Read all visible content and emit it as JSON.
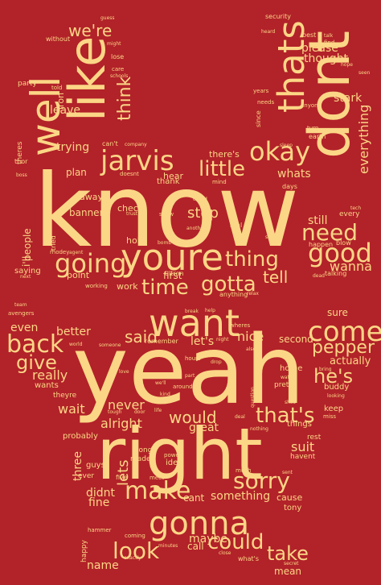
{
  "background_color": "#b22229",
  "word_color": "#fbd686",
  "words": [
    {
      "text": "know",
      "vertical": false
    },
    {
      "text": "yeah",
      "vertical": false
    },
    {
      "text": "right",
      "vertical": false
    },
    {
      "text": "dont",
      "vertical": true
    },
    {
      "text": "youre",
      "vertical": false
    },
    {
      "text": "like",
      "vertical": true
    },
    {
      "text": "want",
      "vertical": false
    },
    {
      "text": "thats",
      "vertical": true
    },
    {
      "text": "well",
      "vertical": true
    },
    {
      "text": "gonna",
      "vertical": false
    },
    {
      "text": "come",
      "vertical": false
    },
    {
      "text": "jarvis",
      "vertical": false
    },
    {
      "text": "okay",
      "vertical": false
    },
    {
      "text": "good",
      "vertical": false
    },
    {
      "text": "going",
      "vertical": false
    },
    {
      "text": "little",
      "vertical": false
    },
    {
      "text": "need",
      "vertical": false
    },
    {
      "text": "time",
      "vertical": false
    },
    {
      "text": "thing",
      "vertical": false
    },
    {
      "text": "gotta",
      "vertical": false
    },
    {
      "text": "back",
      "vertical": false
    },
    {
      "text": "sorry",
      "vertical": false
    },
    {
      "text": "make",
      "vertical": false
    },
    {
      "text": "take",
      "vertical": false
    },
    {
      "text": "look",
      "vertical": false
    },
    {
      "text": "could",
      "vertical": false
    },
    {
      "text": "that's",
      "vertical": false
    },
    {
      "text": "he's",
      "vertical": false
    },
    {
      "text": "pepper",
      "vertical": false
    },
    {
      "text": "would",
      "vertical": false
    },
    {
      "text": "said",
      "vertical": false
    },
    {
      "text": "give",
      "vertical": false
    },
    {
      "text": "think",
      "vertical": true
    },
    {
      "text": "tell",
      "vertical": false
    },
    {
      "text": "stop",
      "vertical": false
    },
    {
      "text": "everything",
      "vertical": true
    },
    {
      "text": "stark",
      "vertical": false
    },
    {
      "text": "we're",
      "vertical": false
    },
    {
      "text": "please",
      "vertical": false
    },
    {
      "text": "thought",
      "vertical": false
    },
    {
      "text": "trying",
      "vertical": false
    },
    {
      "text": "leave",
      "vertical": false
    },
    {
      "text": "whats",
      "vertical": false
    },
    {
      "text": "there's",
      "vertical": false
    },
    {
      "text": "wanna",
      "vertical": false
    },
    {
      "text": "still",
      "vertical": false
    },
    {
      "text": "first",
      "vertical": false
    },
    {
      "text": "nice",
      "vertical": false
    },
    {
      "text": "let's",
      "vertical": false
    },
    {
      "text": "better",
      "vertical": false
    },
    {
      "text": "even",
      "vertical": false
    },
    {
      "text": "really",
      "vertical": false
    },
    {
      "text": "wait",
      "vertical": false
    },
    {
      "text": "never",
      "vertical": false
    },
    {
      "text": "alright",
      "vertical": false
    },
    {
      "text": "great",
      "vertical": false
    },
    {
      "text": "suit",
      "vertical": false
    },
    {
      "text": "actually",
      "vertical": false
    },
    {
      "text": "lets",
      "vertical": true
    },
    {
      "text": "three",
      "vertical": true
    },
    {
      "text": "didnt",
      "vertical": false
    },
    {
      "text": "fine",
      "vertical": false
    },
    {
      "text": "cant",
      "vertical": false
    },
    {
      "text": "something",
      "vertical": false
    },
    {
      "text": "maybe",
      "vertical": false
    },
    {
      "text": "call",
      "vertical": false
    },
    {
      "text": "name",
      "vertical": false
    },
    {
      "text": "mean",
      "vertical": false
    },
    {
      "text": "cause",
      "vertical": false
    },
    {
      "text": "tony",
      "vertical": false
    },
    {
      "text": "sure",
      "vertical": false
    },
    {
      "text": "second",
      "vertical": false
    },
    {
      "text": "plan",
      "vertical": false
    },
    {
      "text": "banner",
      "vertical": false
    },
    {
      "text": "away",
      "vertical": false
    },
    {
      "text": "point",
      "vertical": false
    },
    {
      "text": "work",
      "vertical": false
    },
    {
      "text": "hold",
      "vertical": false
    },
    {
      "text": "check",
      "vertical": false
    },
    {
      "text": "hear",
      "vertical": false
    },
    {
      "text": "thank",
      "vertical": false
    },
    {
      "text": "idea",
      "vertical": false
    },
    {
      "text": "made",
      "vertical": false
    },
    {
      "text": "long",
      "vertical": false
    },
    {
      "text": "five",
      "vertical": false
    },
    {
      "text": "guys",
      "vertical": false
    },
    {
      "text": "ever",
      "vertical": false
    },
    {
      "text": "probably",
      "vertical": false
    },
    {
      "text": "theyre",
      "vertical": false
    },
    {
      "text": "wants",
      "vertical": false
    },
    {
      "text": "keep",
      "vertical": false
    },
    {
      "text": "pretty",
      "vertical": false
    },
    {
      "text": "home",
      "vertical": false
    },
    {
      "text": "things",
      "vertical": false
    },
    {
      "text": "rest",
      "vertical": false
    },
    {
      "text": "havent",
      "vertical": false
    },
    {
      "text": "buddy",
      "vertical": false
    },
    {
      "text": "i'll",
      "vertical": true
    },
    {
      "text": "people",
      "vertical": true
    },
    {
      "text": "saying",
      "vertical": false
    },
    {
      "text": "party",
      "vertical": false
    },
    {
      "text": "iron",
      "vertical": true
    },
    {
      "text": "theres",
      "vertical": true
    },
    {
      "text": "thor",
      "vertical": false
    },
    {
      "text": "ultron",
      "vertical": false
    },
    {
      "text": "anything",
      "vertical": false
    },
    {
      "text": "real",
      "vertical": false
    },
    {
      "text": "every",
      "vertical": false
    },
    {
      "text": "talking",
      "vertical": false
    },
    {
      "text": "happen",
      "vertical": false
    },
    {
      "text": "blow",
      "vertical": false
    },
    {
      "text": "days",
      "vertical": false
    },
    {
      "text": "mind",
      "vertical": false
    },
    {
      "text": "turn",
      "vertical": false
    },
    {
      "text": "earth",
      "vertical": false
    },
    {
      "text": "since",
      "vertical": true
    },
    {
      "text": "needs",
      "vertical": false
    },
    {
      "text": "anyone",
      "vertical": false
    },
    {
      "text": "years",
      "vertical": false
    },
    {
      "text": "told",
      "vertical": false
    },
    {
      "text": "without",
      "vertical": false
    },
    {
      "text": "might",
      "vertical": false
    },
    {
      "text": "lose",
      "vertical": false
    },
    {
      "text": "care",
      "vertical": false
    },
    {
      "text": "schools",
      "vertical": false
    },
    {
      "text": "guess",
      "vertical": false
    },
    {
      "text": "security",
      "vertical": false
    },
    {
      "text": "heard",
      "vertical": false
    },
    {
      "text": "best",
      "vertical": false
    },
    {
      "text": "talk",
      "vertical": false
    },
    {
      "text": "find",
      "vertical": false
    },
    {
      "text": "hope",
      "vertical": false
    },
    {
      "text": "seen",
      "vertical": false
    },
    {
      "text": "can't",
      "vertical": false
    },
    {
      "text": "company",
      "vertical": false
    },
    {
      "text": "doesnt",
      "vertical": false
    },
    {
      "text": "trust",
      "vertical": false
    },
    {
      "text": "show",
      "vertical": false
    },
    {
      "text": "called",
      "vertical": false
    },
    {
      "text": "another",
      "vertical": false
    },
    {
      "text": "bomb",
      "vertical": false
    },
    {
      "text": "slow",
      "vertical": false
    },
    {
      "text": "tried",
      "vertical": true
    },
    {
      "text": "rhodey",
      "vertical": false
    },
    {
      "text": "agent",
      "vertical": false
    },
    {
      "text": "next",
      "vertical": false
    },
    {
      "text": "working",
      "vertical": false
    },
    {
      "text": "team",
      "vertical": false
    },
    {
      "text": "avengers",
      "vertical": false
    },
    {
      "text": "break",
      "vertical": false
    },
    {
      "text": "help",
      "vertical": false
    },
    {
      "text": "wheres",
      "vertical": false
    },
    {
      "text": "night",
      "vertical": false
    },
    {
      "text": "also",
      "vertical": false
    },
    {
      "text": "world",
      "vertical": false
    },
    {
      "text": "someone",
      "vertical": false
    },
    {
      "text": "remember",
      "vertical": false
    },
    {
      "text": "hours",
      "vertical": false
    },
    {
      "text": "drop",
      "vertical": false
    },
    {
      "text": "part",
      "vertical": false
    },
    {
      "text": "love",
      "vertical": false
    },
    {
      "text": "we'll",
      "vertical": false
    },
    {
      "text": "around",
      "vertical": false
    },
    {
      "text": "kind",
      "vertical": false
    },
    {
      "text": "deal",
      "vertical": false
    },
    {
      "text": "question",
      "vertical": true
    },
    {
      "text": "watch",
      "vertical": false
    },
    {
      "text": "looking",
      "vertical": false
    },
    {
      "text": "shes",
      "vertical": false
    },
    {
      "text": "miss",
      "vertical": false
    },
    {
      "text": "nothing",
      "vertical": false
    },
    {
      "text": "door",
      "vertical": false
    },
    {
      "text": "tough",
      "vertical": false
    },
    {
      "text": "life",
      "vertical": false
    },
    {
      "text": "power",
      "vertical": false
    },
    {
      "text": "meet",
      "vertical": false
    },
    {
      "text": "sent",
      "vertical": false
    },
    {
      "text": "much",
      "vertical": false
    },
    {
      "text": "bring",
      "vertical": false
    },
    {
      "text": "sleep",
      "vertical": false
    },
    {
      "text": "happy",
      "vertical": true
    },
    {
      "text": "hammer",
      "vertical": false
    },
    {
      "text": "coming",
      "vertical": false
    },
    {
      "text": "exactly",
      "vertical": false
    },
    {
      "text": "minutes",
      "vertical": false
    },
    {
      "text": "close",
      "vertical": false
    },
    {
      "text": "what's",
      "vertical": false
    },
    {
      "text": "secret",
      "vertical": false
    },
    {
      "text": "boss",
      "vertical": false
    },
    {
      "text": "dead",
      "vertical": false
    },
    {
      "text": "tech",
      "vertical": false
    },
    {
      "text": "relax",
      "vertical": false
    }
  ]
}
